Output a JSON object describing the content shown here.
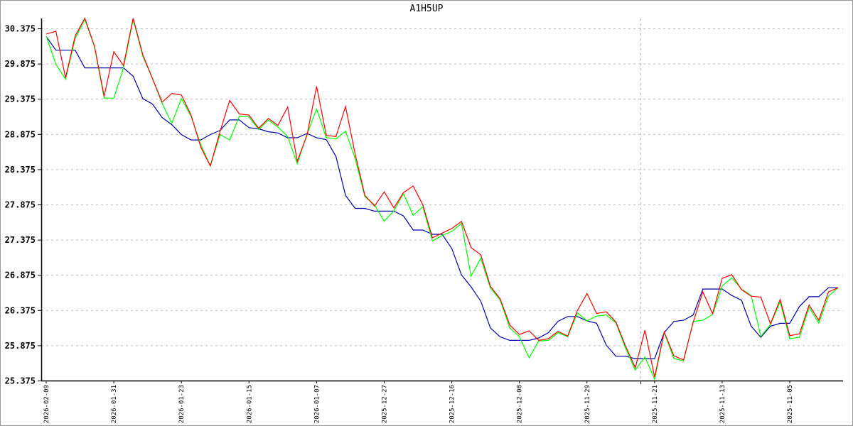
{
  "chart_data": {
    "type": "line",
    "title": "A1H5UP",
    "ylim": [
      25.375,
      30.375
    ],
    "y_ticks": [
      "25.375",
      "25.875",
      "26.375",
      "26.875",
      "27.375",
      "27.875",
      "28.375",
      "28.875",
      "29.375",
      "29.875",
      "30.375"
    ],
    "x_tick_labels": [
      "2026-02-09",
      "2026-01-31",
      "2026-01-23",
      "2026-01-15",
      "2026-01-07",
      "2025-12-27",
      "2025-12-16",
      "2025-12-08",
      "2025-11-29",
      "2025-11-21",
      "2025-11-13",
      "2025-11-05"
    ],
    "x_tick_every": 7,
    "grid": "horizontal dashed",
    "series": [
      {
        "color": "#ff0000",
        "values": [
          30.295,
          30.335,
          29.674,
          30.268,
          30.52,
          30.123,
          29.412,
          30.043,
          29.848,
          30.52,
          30.0,
          29.664,
          29.328,
          29.452,
          29.429,
          29.143,
          28.69,
          28.422,
          28.909,
          29.352,
          29.16,
          29.143,
          28.957,
          29.097,
          28.997,
          29.258,
          28.489,
          28.857,
          29.552,
          28.857,
          28.84,
          29.265,
          28.589,
          28.004,
          27.853,
          28.054,
          27.827,
          28.044,
          28.137,
          27.87,
          27.402,
          27.469,
          27.534,
          27.635,
          27.263,
          27.162,
          26.713,
          26.537,
          26.166,
          26.03,
          26.081,
          25.946,
          25.97,
          26.074,
          26.007,
          26.368,
          26.611,
          26.328,
          26.351,
          26.206,
          25.862,
          25.557,
          26.09,
          25.425,
          26.063,
          25.727,
          25.667,
          26.204,
          26.633,
          26.325,
          26.828,
          26.878,
          26.667,
          26.573,
          26.56,
          26.18,
          26.526,
          26.013,
          26.036,
          26.449,
          26.231,
          26.633,
          26.694
        ]
      },
      {
        "color": "#00ff00",
        "values": [
          30.268,
          29.865,
          29.654,
          30.234,
          30.503,
          30.117,
          29.385,
          29.385,
          29.815,
          30.503,
          29.982,
          29.664,
          29.311,
          29.026,
          29.378,
          29.127,
          28.724,
          28.422,
          28.868,
          28.791,
          29.127,
          29.117,
          28.94,
          29.074,
          28.974,
          28.84,
          28.455,
          28.873,
          29.231,
          28.823,
          28.806,
          28.917,
          28.522,
          27.987,
          27.87,
          27.636,
          27.786,
          28.031,
          27.72,
          27.843,
          27.358,
          27.435,
          27.493,
          27.608,
          26.858,
          27.111,
          26.689,
          26.52,
          26.122,
          25.997,
          25.699,
          25.936,
          25.946,
          26.054,
          25.997,
          26.334,
          26.223,
          26.291,
          26.307,
          26.193,
          25.834,
          25.524,
          25.71,
          25.392,
          26.056,
          25.687,
          25.654,
          26.214,
          26.231,
          26.315,
          26.717,
          26.835,
          26.674,
          26.583,
          26.003,
          26.17,
          26.492,
          25.969,
          25.989,
          26.415,
          26.19,
          26.573,
          26.694
        ]
      },
      {
        "color": "#0000aa",
        "values": [
          30.261,
          30.066,
          30.066,
          30.066,
          29.815,
          29.815,
          29.815,
          29.815,
          29.815,
          29.697,
          29.378,
          29.301,
          29.11,
          29.009,
          28.868,
          28.791,
          28.791,
          28.868,
          28.925,
          29.076,
          29.076,
          28.966,
          28.95,
          28.907,
          28.89,
          28.823,
          28.823,
          28.883,
          28.823,
          28.796,
          28.556,
          28.004,
          27.82,
          27.82,
          27.78,
          27.78,
          27.78,
          27.713,
          27.512,
          27.512,
          27.452,
          27.452,
          27.249,
          26.875,
          26.706,
          26.503,
          26.122,
          25.997,
          25.946,
          25.946,
          25.946,
          25.98,
          26.054,
          26.216,
          26.284,
          26.284,
          26.223,
          26.189,
          25.878,
          25.72,
          25.72,
          25.686,
          25.686,
          25.686,
          26.056,
          26.214,
          26.231,
          26.305,
          26.674,
          26.674,
          26.674,
          26.583,
          26.516,
          26.147,
          25.989,
          26.147,
          26.187,
          26.187,
          26.425,
          26.566,
          26.566,
          26.694,
          26.694
        ]
      }
    ]
  }
}
